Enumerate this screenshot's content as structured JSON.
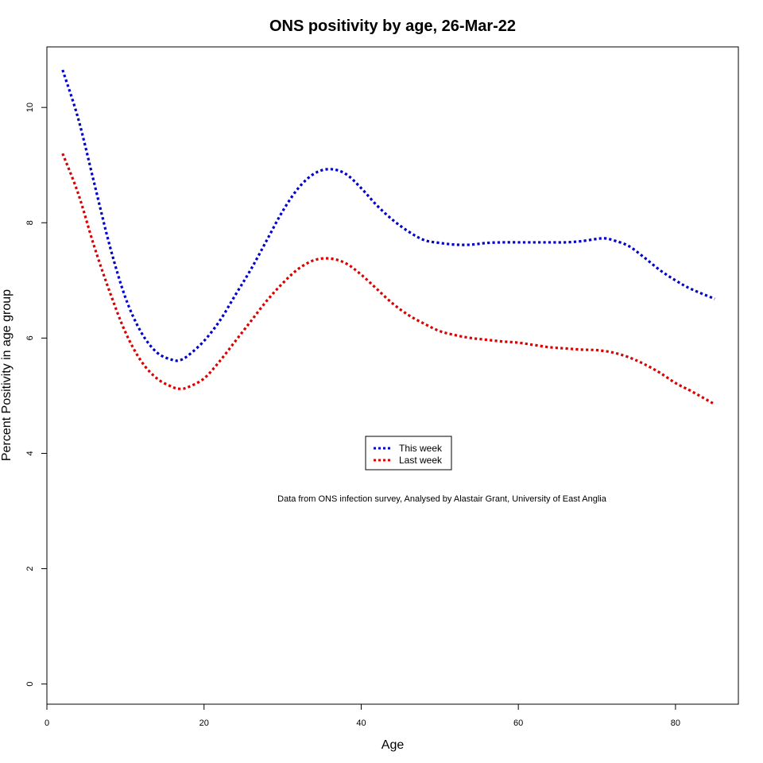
{
  "chart_data": {
    "type": "line",
    "title": "ONS positivity by age, 26-Mar-22",
    "xlabel": "Age",
    "ylabel": "Percent Positivity in age group",
    "xlim": [
      0,
      88
    ],
    "ylim": [
      -0.35,
      11.05
    ],
    "x_ticks": [
      0,
      20,
      40,
      60,
      80
    ],
    "y_ticks": [
      0,
      2,
      4,
      6,
      8,
      10
    ],
    "grid": false,
    "legend_position": "center",
    "annotation": "Data from ONS infection survey, Analysed by Alastair Grant, University of East Anglia",
    "series": [
      {
        "name": "This week",
        "color": "#0000cc",
        "style": "dotted",
        "x": [
          2,
          4,
          6,
          8,
          10,
          12,
          14,
          16,
          17,
          18,
          20,
          22,
          24,
          26,
          28,
          30,
          32,
          34,
          36,
          38,
          40,
          42,
          44,
          46,
          48,
          50,
          52,
          54,
          56,
          58,
          60,
          62,
          64,
          66,
          68,
          70,
          71,
          72,
          74,
          76,
          78,
          80,
          82,
          85
        ],
        "y": [
          10.65,
          9.8,
          8.7,
          7.6,
          6.7,
          6.1,
          5.75,
          5.62,
          5.62,
          5.7,
          5.95,
          6.3,
          6.75,
          7.2,
          7.7,
          8.2,
          8.6,
          8.85,
          8.93,
          8.85,
          8.6,
          8.3,
          8.05,
          7.85,
          7.7,
          7.65,
          7.62,
          7.62,
          7.65,
          7.66,
          7.66,
          7.66,
          7.66,
          7.66,
          7.68,
          7.72,
          7.73,
          7.7,
          7.6,
          7.4,
          7.18,
          7.0,
          6.85,
          6.68
        ]
      },
      {
        "name": "Last week",
        "color": "#dd0000",
        "style": "dotted",
        "x": [
          2,
          4,
          6,
          8,
          10,
          12,
          14,
          16,
          17,
          18,
          20,
          22,
          24,
          26,
          28,
          30,
          32,
          34,
          36,
          38,
          40,
          42,
          44,
          46,
          48,
          50,
          52,
          54,
          56,
          58,
          60,
          62,
          64,
          66,
          68,
          70,
          72,
          74,
          76,
          78,
          80,
          82,
          85
        ],
        "y": [
          9.2,
          8.5,
          7.6,
          6.8,
          6.1,
          5.6,
          5.3,
          5.15,
          5.12,
          5.15,
          5.3,
          5.6,
          5.95,
          6.3,
          6.65,
          6.95,
          7.2,
          7.35,
          7.38,
          7.3,
          7.1,
          6.85,
          6.6,
          6.4,
          6.25,
          6.12,
          6.05,
          6.0,
          5.97,
          5.94,
          5.92,
          5.88,
          5.84,
          5.82,
          5.8,
          5.79,
          5.75,
          5.67,
          5.55,
          5.4,
          5.22,
          5.08,
          4.85
        ]
      }
    ]
  }
}
